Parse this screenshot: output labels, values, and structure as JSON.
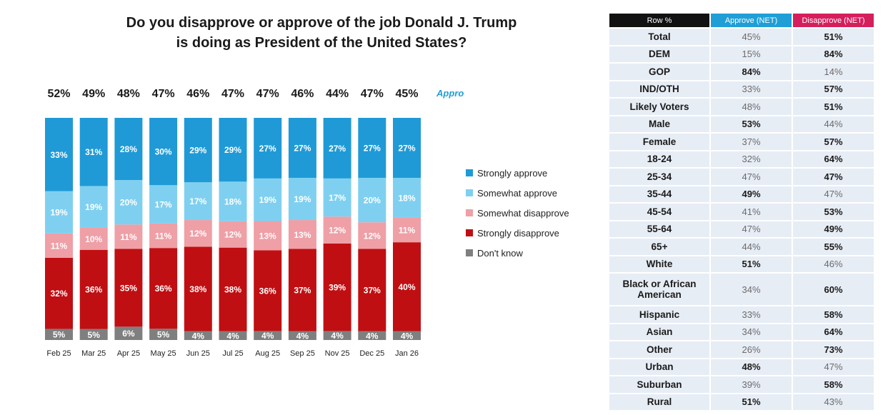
{
  "title_line1": "Do you disapprove or approve of the job Donald J. Trump",
  "title_line2": "is doing as President of the United States?",
  "colors": {
    "strongly_approve": "#1f9ad6",
    "somewhat_approve": "#7fd0f0",
    "somewhat_disapprove": "#ef9fa6",
    "strongly_disapprove": "#c00f12",
    "dont_know": "#7f7f7f",
    "approve_label": "#1f9fd6",
    "disapprove_header": "#d51f5c"
  },
  "chart_data": {
    "type": "bar",
    "stacked": true,
    "normalized": true,
    "title": "Do you disapprove or approve of the job Donald J. Trump is doing as President of the United States?",
    "categories": [
      "Feb 25",
      "Mar 25",
      "Apr 25",
      "May 25",
      "Jun 25",
      "Jul 25",
      "Aug 25",
      "Sep 25",
      "Nov 25",
      "Dec 25",
      "Jan 26"
    ],
    "approve_totals": [
      52,
      49,
      48,
      47,
      46,
      47,
      47,
      46,
      44,
      47,
      45
    ],
    "approve_totals_labels": [
      "52%",
      "49%",
      "48%",
      "47%",
      "46%",
      "47%",
      "47%",
      "46%",
      "44%",
      "47%",
      "45%"
    ],
    "approve_totals_caption": "Approve",
    "series": [
      {
        "name": "Don't know",
        "key": "dont_know",
        "values": [
          5,
          5,
          6,
          5,
          4,
          4,
          4,
          4,
          4,
          4,
          4
        ],
        "labels": [
          "5%",
          "5%",
          "6%",
          "5%",
          "4%",
          "4%",
          "4%",
          "4%",
          "4%",
          "4%",
          "4%"
        ]
      },
      {
        "name": "Strongly disapprove",
        "key": "strongly_disapprove",
        "values": [
          32,
          36,
          35,
          36,
          38,
          38,
          36,
          37,
          39,
          37,
          40
        ],
        "labels": [
          "32%",
          "36%",
          "35%",
          "36%",
          "38%",
          "38%",
          "36%",
          "37%",
          "39%",
          "37%",
          "40%"
        ]
      },
      {
        "name": "Somewhat disapprove",
        "key": "somewhat_disapprove",
        "values": [
          11,
          10,
          11,
          11,
          12,
          12,
          13,
          13,
          12,
          12,
          11
        ],
        "labels": [
          "11%",
          "10%",
          "11%",
          "11%",
          "12%",
          "12%",
          "13%",
          "13%",
          "12%",
          "12%",
          "11%"
        ]
      },
      {
        "name": "Somewhat approve",
        "key": "somewhat_approve",
        "values": [
          19,
          19,
          20,
          17,
          17,
          18,
          19,
          19,
          17,
          20,
          18
        ],
        "labels": [
          "19%",
          "19%",
          "20%",
          "17%",
          "17%",
          "18%",
          "19%",
          "19%",
          "17%",
          "20%",
          "18%"
        ]
      },
      {
        "name": "Strongly approve",
        "key": "strongly_approve",
        "values": [
          33,
          31,
          28,
          30,
          29,
          29,
          27,
          27,
          27,
          27,
          27
        ],
        "labels": [
          "33%",
          "31%",
          "28%",
          "30%",
          "29%",
          "29%",
          "27%",
          "27%",
          "27%",
          "27%",
          "27%"
        ]
      }
    ],
    "legend": [
      "Strongly approve",
      "Somewhat approve",
      "Somewhat disapprove",
      "Strongly disapprove",
      "Don't know"
    ],
    "legend_keys": [
      "strongly_approve",
      "somewhat_approve",
      "somewhat_disapprove",
      "strongly_disapprove",
      "dont_know"
    ],
    "legend_position": "right",
    "ylim": [
      0,
      100
    ]
  },
  "table": {
    "headers": [
      "Row %",
      "Approve (NET)",
      "Disapprove (NET)"
    ],
    "rows": [
      {
        "label": "Total",
        "approve": "45%",
        "disapprove": "51%",
        "winner": "disapprove"
      },
      {
        "label": "DEM",
        "approve": "15%",
        "disapprove": "84%",
        "winner": "disapprove"
      },
      {
        "label": "GOP",
        "approve": "84%",
        "disapprove": "14%",
        "winner": "approve"
      },
      {
        "label": "IND/OTH",
        "approve": "33%",
        "disapprove": "57%",
        "winner": "disapprove"
      },
      {
        "label": "Likely Voters",
        "approve": "48%",
        "disapprove": "51%",
        "winner": "disapprove"
      },
      {
        "label": "Male",
        "approve": "53%",
        "disapprove": "44%",
        "winner": "approve"
      },
      {
        "label": "Female",
        "approve": "37%",
        "disapprove": "57%",
        "winner": "disapprove"
      },
      {
        "label": "18-24",
        "approve": "32%",
        "disapprove": "64%",
        "winner": "disapprove"
      },
      {
        "label": "25-34",
        "approve": "47%",
        "disapprove": "47%",
        "winner": "disapprove"
      },
      {
        "label": "35-44",
        "approve": "49%",
        "disapprove": "47%",
        "winner": "approve"
      },
      {
        "label": "45-54",
        "approve": "41%",
        "disapprove": "53%",
        "winner": "disapprove"
      },
      {
        "label": "55-64",
        "approve": "47%",
        "disapprove": "49%",
        "winner": "disapprove"
      },
      {
        "label": "65+",
        "approve": "44%",
        "disapprove": "55%",
        "winner": "disapprove"
      },
      {
        "label": "White",
        "approve": "51%",
        "disapprove": "46%",
        "winner": "approve"
      },
      {
        "label": "Black or African American",
        "label_line1": "Black or African",
        "label_line2": "American",
        "approve": "34%",
        "disapprove": "60%",
        "winner": "disapprove"
      },
      {
        "label": "Hispanic",
        "approve": "33%",
        "disapprove": "58%",
        "winner": "disapprove"
      },
      {
        "label": "Asian",
        "approve": "34%",
        "disapprove": "64%",
        "winner": "disapprove"
      },
      {
        "label": "Other",
        "approve": "26%",
        "disapprove": "73%",
        "winner": "disapprove"
      },
      {
        "label": "Urban",
        "approve": "48%",
        "disapprove": "47%",
        "winner": "approve"
      },
      {
        "label": "Suburban",
        "approve": "39%",
        "disapprove": "58%",
        "winner": "disapprove"
      },
      {
        "label": "Rural",
        "approve": "51%",
        "disapprove": "43%",
        "winner": "approve"
      }
    ]
  }
}
